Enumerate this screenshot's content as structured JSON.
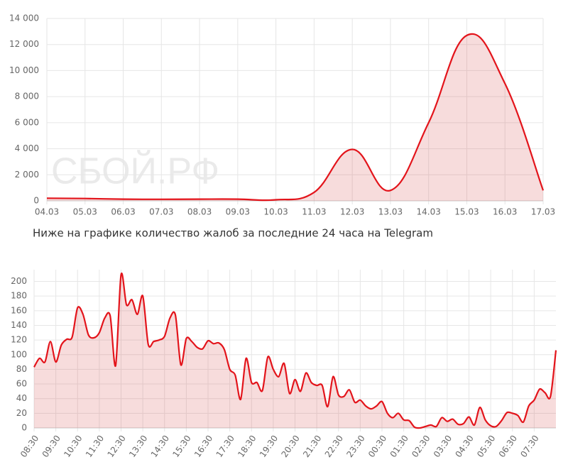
{
  "caption": "Ниже на графике количество жалоб за последние 24 часа на Telegram",
  "chart_data": [
    {
      "type": "area",
      "watermark": "СБОЙ.РФ",
      "grid": true,
      "color": "#e3141b",
      "fill": "rgba(214,80,80,0.2)",
      "categories": [
        "04.03",
        "05.03",
        "06.03",
        "07.03",
        "08.03",
        "09.03",
        "10.03",
        "11.03",
        "12.03",
        "13.03",
        "14.03",
        "15.03",
        "16.03",
        "17.03"
      ],
      "values": [
        200,
        180,
        130,
        120,
        130,
        130,
        80,
        650,
        3950,
        800,
        6000,
        12700,
        9000,
        800
      ],
      "ylim": [
        0,
        14000
      ],
      "yticks": [
        0,
        {
          "value": 2000,
          "label": "2 000"
        },
        {
          "value": 4000,
          "label": "4 000"
        },
        {
          "value": 6000,
          "label": "6 000"
        },
        {
          "value": 8000,
          "label": "8 000"
        },
        {
          "value": 10000,
          "label": "10 000"
        },
        {
          "value": 12000,
          "label": "12 000"
        },
        {
          "value": 14000,
          "label": "14 000"
        }
      ]
    },
    {
      "type": "area",
      "grid": true,
      "color": "#e3141b",
      "fill": "rgba(214,80,80,0.2)",
      "categories": [
        "08:30",
        null,
        null,
        null,
        "09:30",
        null,
        null,
        null,
        "10:30",
        null,
        null,
        null,
        "11:30",
        null,
        null,
        null,
        "12:30",
        null,
        null,
        null,
        "13:30",
        null,
        null,
        null,
        "14:30",
        null,
        null,
        null,
        "15:30",
        null,
        null,
        null,
        "16:30",
        null,
        null,
        null,
        "17:30",
        null,
        null,
        null,
        "18:30",
        null,
        null,
        null,
        "19:30",
        null,
        null,
        null,
        "20:30",
        null,
        null,
        null,
        "21:30",
        null,
        null,
        null,
        "22:30",
        null,
        null,
        null,
        "23:30",
        null,
        null,
        null,
        "00:30",
        null,
        null,
        null,
        "01:30",
        null,
        null,
        null,
        "02:30",
        null,
        null,
        null,
        "03:30",
        null,
        null,
        null,
        "04:30",
        null,
        null,
        null,
        "05:30",
        null,
        null,
        null,
        "06:30",
        null,
        null,
        null,
        "07:30",
        null,
        null,
        null,
        null
      ],
      "values": [
        83,
        95,
        90,
        118,
        90,
        113,
        121,
        124,
        164,
        155,
        127,
        123,
        130,
        150,
        153,
        85,
        209,
        168,
        175,
        155,
        180,
        114,
        118,
        120,
        125,
        150,
        154,
        86,
        122,
        118,
        110,
        108,
        119,
        115,
        116,
        107,
        80,
        72,
        39,
        95,
        62,
        62,
        51,
        97,
        80,
        70,
        88,
        47,
        66,
        50,
        75,
        62,
        58,
        58,
        29,
        70,
        45,
        43,
        52,
        35,
        38,
        30,
        26,
        30,
        36,
        20,
        14,
        20,
        11,
        10,
        1,
        0,
        2,
        4,
        2,
        14,
        9,
        12,
        5,
        6,
        15,
        4,
        28,
        11,
        3,
        2,
        10,
        21,
        20,
        17,
        8,
        30,
        38,
        53,
        48,
        43,
        106
      ],
      "ylim": [
        0,
        216
      ],
      "yticks": [
        0,
        20,
        40,
        60,
        80,
        100,
        120,
        140,
        160,
        180,
        200
      ]
    }
  ]
}
